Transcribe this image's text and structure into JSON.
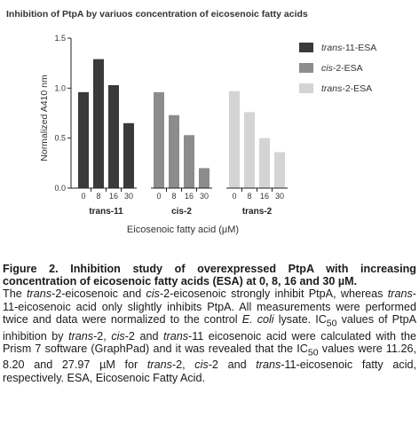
{
  "chart_data": {
    "type": "bar",
    "title": "Inhibition of  PtpA by variuos concentration of eicosenoic fatty acids",
    "ylabel": "Normalized  A410 nm",
    "xlabel": "Eicosenoic fatty acid (μM)",
    "ylim": [
      0,
      1.5
    ],
    "yticks": [
      "0.0",
      "0.5",
      "1.0",
      "1.5"
    ],
    "concentrations": [
      "0",
      "8",
      "16",
      "30"
    ],
    "legend_position": "right",
    "series": [
      {
        "name": "trans-11-ESA",
        "group_label": "trans-11",
        "color": "#3a3a3a",
        "values": [
          0.96,
          1.29,
          1.03,
          0.65
        ]
      },
      {
        "name": "cis-2-ESA",
        "group_label": "cis-2",
        "color": "#8c8c8c",
        "values": [
          0.96,
          0.73,
          0.53,
          0.2
        ]
      },
      {
        "name": "trans-2-ESA",
        "group_label": "trans-2",
        "color": "#d4d4d4",
        "values": [
          0.97,
          0.76,
          0.5,
          0.36
        ]
      }
    ]
  },
  "caption": {
    "heading": "Figure 2. Inhibition study of overexpressed PtpA with increasing concentration of eicosenoic fatty acids (ESA) at 0, 8, 16 and 30 µM.",
    "body_html": "The <i>trans</i>-2-eicosenoic and <i>cis</i>-2-eicosenoic strongly inhibit PtpA, whereas <i>trans</i>-11-eicosenoic acid only slightly inhibits PtpA. All measurements were performed twice and data were normalized to the control <i>E. coli</i> lysate. IC<sub>50</sub> values of PtpA inhibition by <i>trans</i>-2, <i>cis</i>-2 and <i>trans</i>-11 eicosenoic acid were calculated with the Prism 7 software (GraphPad) and it was revealed that the IC<sub>50</sub> values were 11.26, 8.20 and 27.97 µM for <i>trans</i>-2, <i>cis</i>-2 and <i>trans</i>-11-eicosenoic fatty acid, respectively. ESA, Eicosenoic Fatty Acid."
  }
}
